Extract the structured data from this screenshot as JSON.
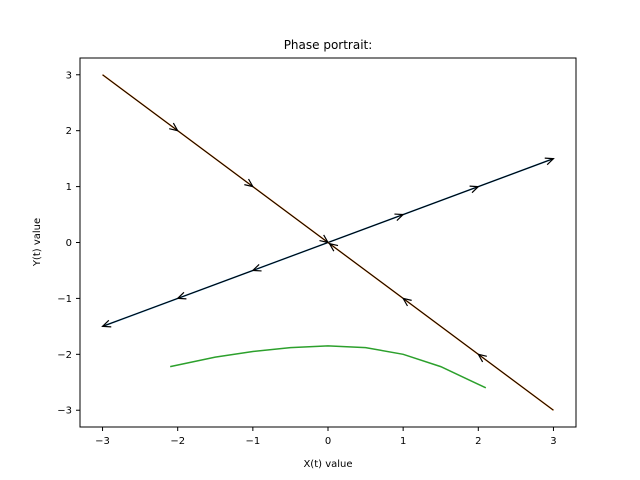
{
  "chart_data": {
    "type": "line",
    "title": "Phase portrait:",
    "xlabel": "X(t) value",
    "ylabel": "Y(t) value",
    "xlim": [
      -3.3,
      3.3
    ],
    "ylim": [
      -3.3,
      3.3
    ],
    "xticks": [
      -3,
      -2,
      -1,
      0,
      1,
      2,
      3
    ],
    "yticks": [
      -3,
      -2,
      -1,
      0,
      1,
      2,
      3
    ],
    "x_tick_labels": [
      "−3",
      "−2",
      "−1",
      "0",
      "1",
      "2",
      "3"
    ],
    "y_tick_labels": [
      "−3",
      "−2",
      "−1",
      "0",
      "1",
      "2",
      "3"
    ],
    "grid": false,
    "series": [
      {
        "color": "#1f77b4",
        "x": [
          -3,
          3
        ],
        "y": [
          -1.5,
          1.5
        ],
        "overlay_color": "#000000",
        "arrows": [
          {
            "x": 3,
            "y": 1.5,
            "dir": "out"
          },
          {
            "x": 2,
            "y": 1.0,
            "dir": "out"
          },
          {
            "x": 1,
            "y": 0.5,
            "dir": "out"
          },
          {
            "x": -1,
            "y": -0.5,
            "dir": "out"
          },
          {
            "x": -2,
            "y": -1.0,
            "dir": "out"
          },
          {
            "x": -3,
            "y": -1.5,
            "dir": "out"
          }
        ]
      },
      {
        "color": "#ff7f0e",
        "x": [
          -3,
          3
        ],
        "y": [
          3,
          -3
        ],
        "overlay_color": "#000000",
        "arrows": [
          {
            "x": -2,
            "y": 2,
            "dir": "in"
          },
          {
            "x": -1,
            "y": 1,
            "dir": "in"
          },
          {
            "x": 0,
            "y": 0,
            "dir": "in"
          },
          {
            "x": 0.02,
            "y": -0.02,
            "dir": "in"
          },
          {
            "x": 1,
            "y": -1,
            "dir": "in"
          },
          {
            "x": 2,
            "y": -2,
            "dir": "in"
          }
        ]
      },
      {
        "color": "#2ca02c",
        "x": [
          -2.1,
          -1.5,
          -1.0,
          -0.5,
          0.0,
          0.5,
          1.0,
          1.5,
          2.1
        ],
        "y": [
          -2.22,
          -2.05,
          -1.95,
          -1.88,
          -1.85,
          -1.88,
          -2.0,
          -2.22,
          -2.6
        ]
      }
    ]
  }
}
